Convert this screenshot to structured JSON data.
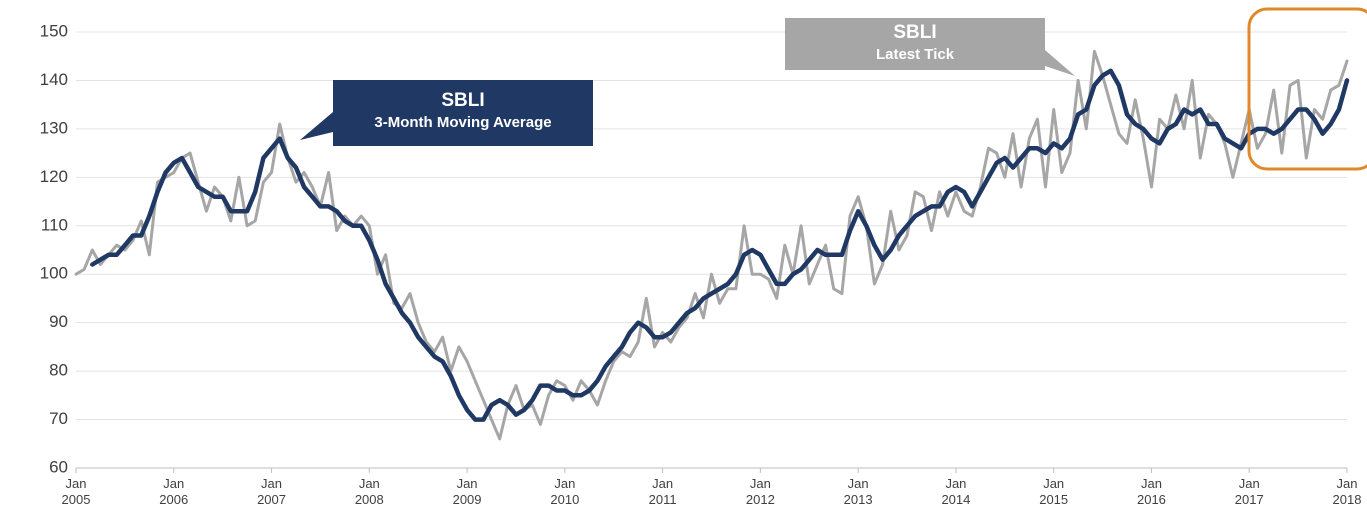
{
  "chart_data": {
    "type": "line",
    "categories": [
      "Jan\n2005",
      null,
      null,
      null,
      null,
      null,
      null,
      null,
      null,
      null,
      null,
      null,
      "Jan\n2006",
      null,
      null,
      null,
      null,
      null,
      null,
      null,
      null,
      null,
      null,
      null,
      "Jan\n2007",
      null,
      null,
      null,
      null,
      null,
      null,
      null,
      null,
      null,
      null,
      null,
      "Jan\n2008",
      null,
      null,
      null,
      null,
      null,
      null,
      null,
      null,
      null,
      null,
      null,
      "Jan\n2009",
      null,
      null,
      null,
      null,
      null,
      null,
      null,
      null,
      null,
      null,
      null,
      "Jan\n2010",
      null,
      null,
      null,
      null,
      null,
      null,
      null,
      null,
      null,
      null,
      null,
      "Jan\n2011",
      null,
      null,
      null,
      null,
      null,
      null,
      null,
      null,
      null,
      null,
      null,
      "Jan\n2012",
      null,
      null,
      null,
      null,
      null,
      null,
      null,
      null,
      null,
      null,
      null,
      "Jan\n2013",
      null,
      null,
      null,
      null,
      null,
      null,
      null,
      null,
      null,
      null,
      null,
      "Jan\n2014",
      null,
      null,
      null,
      null,
      null,
      null,
      null,
      null,
      null,
      null,
      null,
      "Jan\n2015",
      null,
      null,
      null,
      null,
      null,
      null,
      null,
      null,
      null,
      null,
      null,
      "Jan\n2016",
      null,
      null,
      null,
      null,
      null,
      null,
      null,
      null,
      null,
      null,
      null,
      "Jan\n2017",
      null,
      null,
      null,
      null,
      null,
      null,
      null,
      null,
      null,
      null,
      null,
      "Jan\n2018"
    ],
    "series": [
      {
        "color": "#a6a6a6",
        "values": [
          100,
          101,
          105,
          102,
          104,
          106,
          105,
          107,
          111,
          104,
          119,
          120,
          121,
          124,
          125,
          119,
          113,
          118,
          116,
          111,
          120,
          110,
          111,
          119,
          121,
          131,
          124,
          119,
          121,
          118,
          114,
          121,
          109,
          112,
          110,
          112,
          110,
          100,
          104,
          94,
          93,
          96,
          90,
          86,
          84,
          87,
          80,
          85,
          82,
          78,
          74,
          70,
          66,
          73,
          77,
          72,
          73,
          69,
          75,
          78,
          77,
          74,
          78,
          76,
          73,
          78,
          82,
          84,
          83,
          86,
          95,
          85,
          88,
          86,
          89,
          91,
          96,
          91,
          100,
          94,
          97,
          97,
          110,
          100,
          100,
          99,
          95,
          106,
          100,
          110,
          98,
          102,
          106,
          97,
          96,
          112,
          116,
          110,
          98,
          102,
          113,
          105,
          108,
          117,
          116,
          109,
          117,
          112,
          117,
          113,
          112,
          118,
          126,
          125,
          120,
          129,
          118,
          128,
          132,
          118,
          134,
          121,
          125,
          140,
          130,
          146,
          141,
          135,
          129,
          127,
          136,
          128,
          118,
          132,
          130,
          137,
          130,
          140,
          124,
          133,
          131,
          127,
          120,
          127,
          134,
          126,
          129,
          138,
          125,
          139,
          140,
          124,
          134,
          132,
          138,
          139,
          144
        ]
      },
      {
        "color": "#1f3864",
        "values": [
          null,
          null,
          102,
          103,
          104,
          104,
          106,
          108,
          108,
          112,
          117,
          121,
          123,
          124,
          121,
          118,
          117,
          116,
          116,
          113,
          113,
          113,
          117,
          124,
          126,
          128,
          124,
          122,
          118,
          116,
          114,
          114,
          113,
          111,
          110,
          110,
          107,
          103,
          98,
          95,
          92,
          90,
          87,
          85,
          83,
          82,
          79,
          75,
          72,
          70,
          70,
          73,
          74,
          73,
          71,
          72,
          74,
          77,
          77,
          76,
          76,
          75,
          75,
          76,
          78,
          81,
          83,
          85,
          88,
          90,
          89,
          87,
          87,
          88,
          90,
          92,
          93,
          95,
          96,
          97,
          98,
          100,
          104,
          105,
          104,
          101,
          98,
          98,
          100,
          101,
          103,
          105,
          104,
          104,
          104,
          109,
          113,
          110,
          106,
          103,
          105,
          108,
          110,
          112,
          113,
          114,
          114,
          117,
          118,
          117,
          114,
          117,
          120,
          123,
          124,
          122,
          124,
          126,
          126,
          125,
          127,
          126,
          128,
          133,
          134,
          139,
          141,
          142,
          139,
          133,
          131,
          130,
          128,
          127,
          130,
          131,
          134,
          133,
          134,
          131,
          131,
          128,
          127,
          126,
          129,
          130,
          130,
          129,
          130,
          132,
          134,
          134,
          132,
          129,
          131,
          134,
          140
        ]
      }
    ],
    "annotations": [
      {
        "title": "SBLI",
        "subtitle": "3-Month Moving Average"
      },
      {
        "title": "SBLI",
        "subtitle": "Latest Tick"
      }
    ],
    "ylim": [
      60,
      150
    ],
    "yticks": [
      60,
      70,
      80,
      90,
      100,
      110,
      120,
      130,
      140,
      150
    ],
    "grid": true
  }
}
